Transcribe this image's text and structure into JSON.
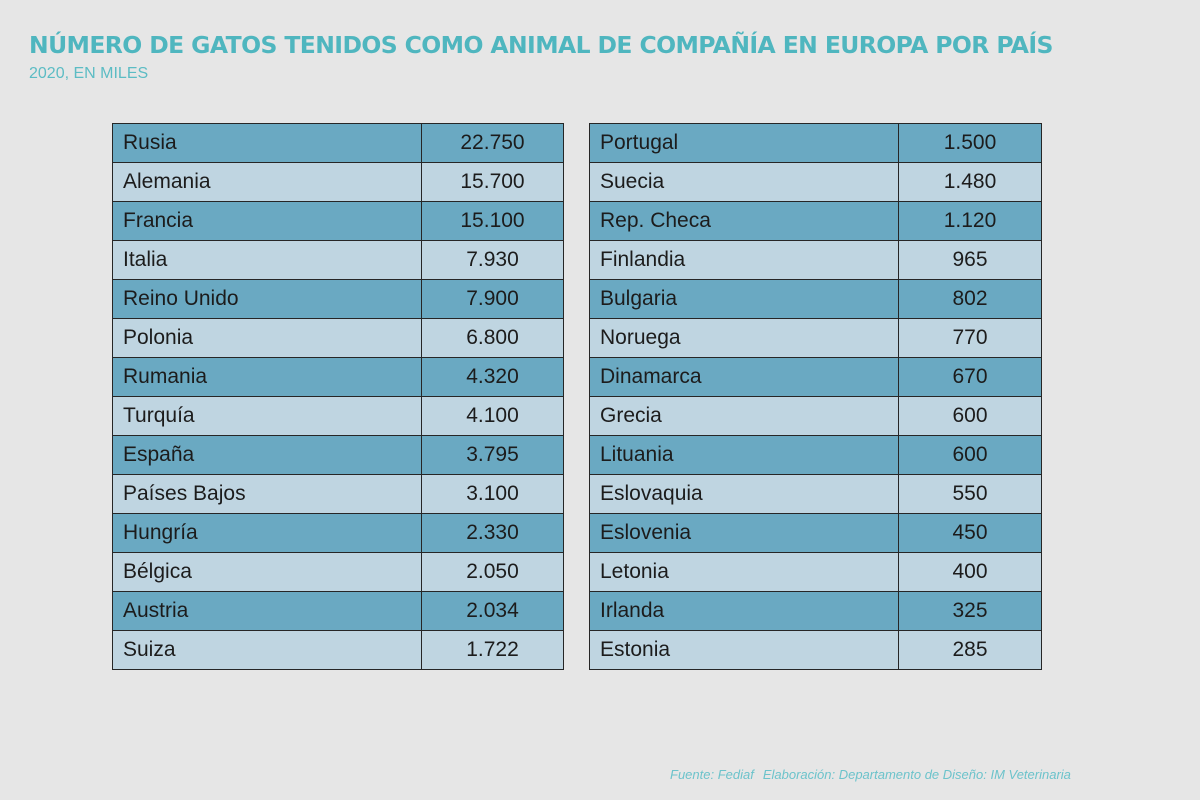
{
  "title": "NÚMERO DE GATOS TENIDOS COMO ANIMAL DE COMPAÑÍA EN EUROPA POR PAÍS",
  "subtitle": "2020, EN MILES",
  "colors": {
    "title": "#4fb6bf",
    "row_dark": "#6aa9c2",
    "row_light": "#bfd5e1",
    "background": "#e6e6e6"
  },
  "chart_data": {
    "type": "table",
    "title": "NÚMERO DE GATOS TENIDOS COMO ANIMAL DE COMPAÑÍA EN EUROPA POR PAÍS",
    "subtitle": "2020, EN MILES",
    "tables": [
      {
        "rows": [
          {
            "country": "Rusia",
            "value": "22.750"
          },
          {
            "country": "Alemania",
            "value": "15.700"
          },
          {
            "country": "Francia",
            "value": "15.100"
          },
          {
            "country": "Italia",
            "value": "7.930"
          },
          {
            "country": "Reino Unido",
            "value": "7.900"
          },
          {
            "country": "Polonia",
            "value": "6.800"
          },
          {
            "country": "Rumania",
            "value": "4.320"
          },
          {
            "country": "Turquía",
            "value": "4.100"
          },
          {
            "country": "España",
            "value": "3.795"
          },
          {
            "country": "Países Bajos",
            "value": "3.100"
          },
          {
            "country": "Hungría",
            "value": "2.330"
          },
          {
            "country": "Bélgica",
            "value": "2.050"
          },
          {
            "country": "Austria",
            "value": "2.034"
          },
          {
            "country": "Suiza",
            "value": "1.722"
          }
        ]
      },
      {
        "rows": [
          {
            "country": "Portugal",
            "value": "1.500"
          },
          {
            "country": "Suecia",
            "value": "1.480"
          },
          {
            "country": "Rep. Checa",
            "value": "1.120"
          },
          {
            "country": "Finlandia",
            "value": "965"
          },
          {
            "country": "Bulgaria",
            "value": "802"
          },
          {
            "country": "Noruega",
            "value": "770"
          },
          {
            "country": "Dinamarca",
            "value": "670"
          },
          {
            "country": "Grecia",
            "value": "600"
          },
          {
            "country": "Lituania",
            "value": "600"
          },
          {
            "country": "Eslovaquia",
            "value": "550"
          },
          {
            "country": "Eslovenia",
            "value": "450"
          },
          {
            "country": "Letonia",
            "value": "400"
          },
          {
            "country": "Irlanda",
            "value": "325"
          },
          {
            "country": "Estonia",
            "value": "285"
          }
        ]
      }
    ]
  },
  "footer": {
    "source": "Fuente:  Fediaf",
    "credit": "Elaboración: Departamento de Diseño: IM Veterinaria"
  }
}
